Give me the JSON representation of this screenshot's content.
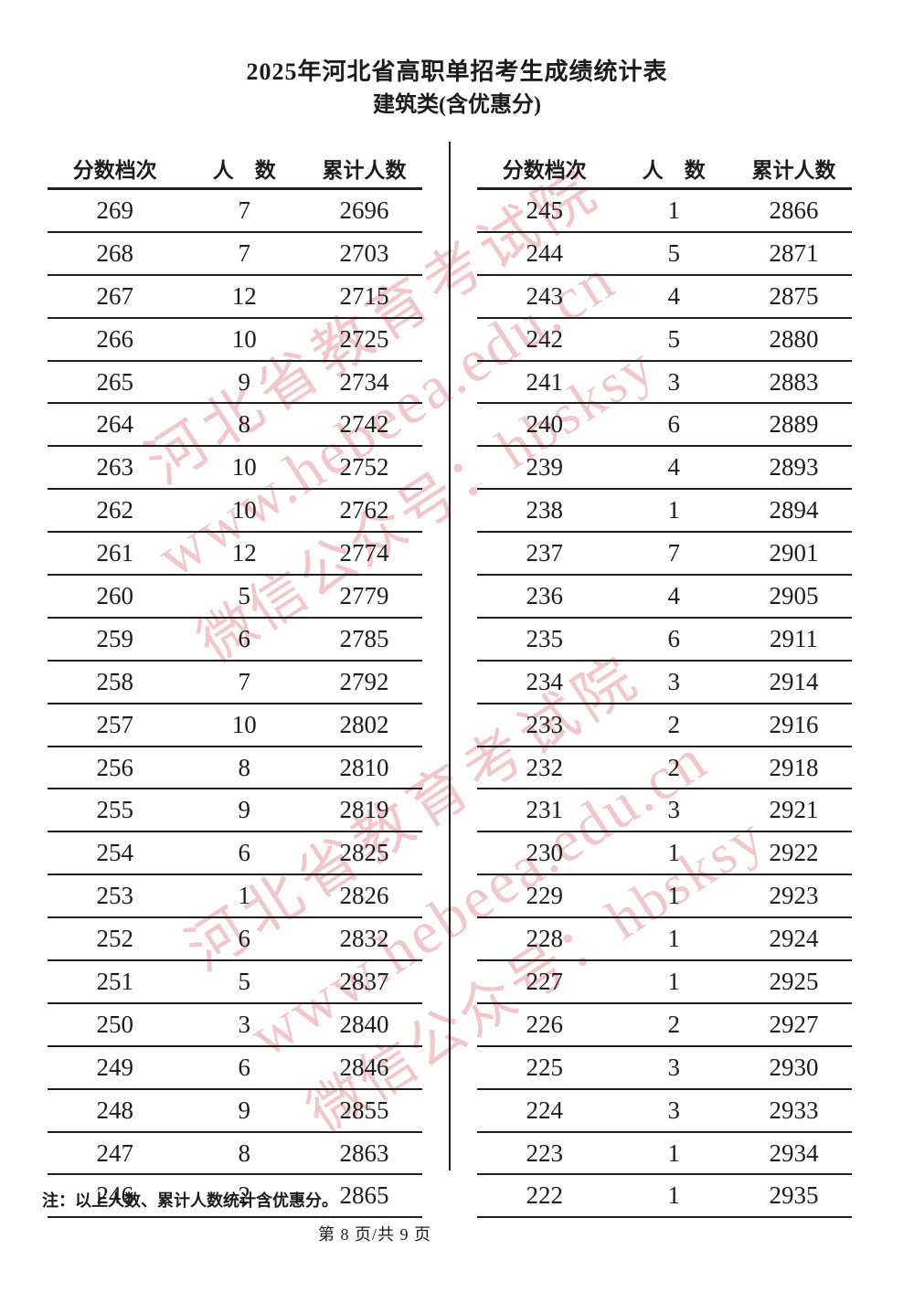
{
  "page": {
    "title": "2025年河北省高职单招考生成绩统计表",
    "subtitle": "建筑类(含优惠分)",
    "note": "注：以上人数、累计人数统计含优惠分。",
    "page_indicator": "第 8 页/共 9 页"
  },
  "watermark": {
    "color": "#E78F9A",
    "lines": [
      "河北省教育考试院",
      "www.hebeea.edu.cn",
      "微信公众号：hbsksy"
    ]
  },
  "tables": [
    {
      "headers": [
        "分数档次",
        "人　数",
        "累计人数"
      ],
      "rows": [
        [
          269,
          7,
          2696
        ],
        [
          268,
          7,
          2703
        ],
        [
          267,
          12,
          2715
        ],
        [
          266,
          10,
          2725
        ],
        [
          265,
          9,
          2734
        ],
        [
          264,
          8,
          2742
        ],
        [
          263,
          10,
          2752
        ],
        [
          262,
          10,
          2762
        ],
        [
          261,
          12,
          2774
        ],
        [
          260,
          5,
          2779
        ],
        [
          259,
          6,
          2785
        ],
        [
          258,
          7,
          2792
        ],
        [
          257,
          10,
          2802
        ],
        [
          256,
          8,
          2810
        ],
        [
          255,
          9,
          2819
        ],
        [
          254,
          6,
          2825
        ],
        [
          253,
          1,
          2826
        ],
        [
          252,
          6,
          2832
        ],
        [
          251,
          5,
          2837
        ],
        [
          250,
          3,
          2840
        ],
        [
          249,
          6,
          2846
        ],
        [
          248,
          9,
          2855
        ],
        [
          247,
          8,
          2863
        ],
        [
          246,
          2,
          2865
        ]
      ]
    },
    {
      "headers": [
        "分数档次",
        "人　数",
        "累计人数"
      ],
      "rows": [
        [
          245,
          1,
          2866
        ],
        [
          244,
          5,
          2871
        ],
        [
          243,
          4,
          2875
        ],
        [
          242,
          5,
          2880
        ],
        [
          241,
          3,
          2883
        ],
        [
          240,
          6,
          2889
        ],
        [
          239,
          4,
          2893
        ],
        [
          238,
          1,
          2894
        ],
        [
          237,
          7,
          2901
        ],
        [
          236,
          4,
          2905
        ],
        [
          235,
          6,
          2911
        ],
        [
          234,
          3,
          2914
        ],
        [
          233,
          2,
          2916
        ],
        [
          232,
          2,
          2918
        ],
        [
          231,
          3,
          2921
        ],
        [
          230,
          1,
          2922
        ],
        [
          229,
          1,
          2923
        ],
        [
          228,
          1,
          2924
        ],
        [
          227,
          1,
          2925
        ],
        [
          226,
          2,
          2927
        ],
        [
          225,
          3,
          2930
        ],
        [
          224,
          3,
          2933
        ],
        [
          223,
          1,
          2934
        ],
        [
          222,
          1,
          2935
        ]
      ]
    }
  ]
}
